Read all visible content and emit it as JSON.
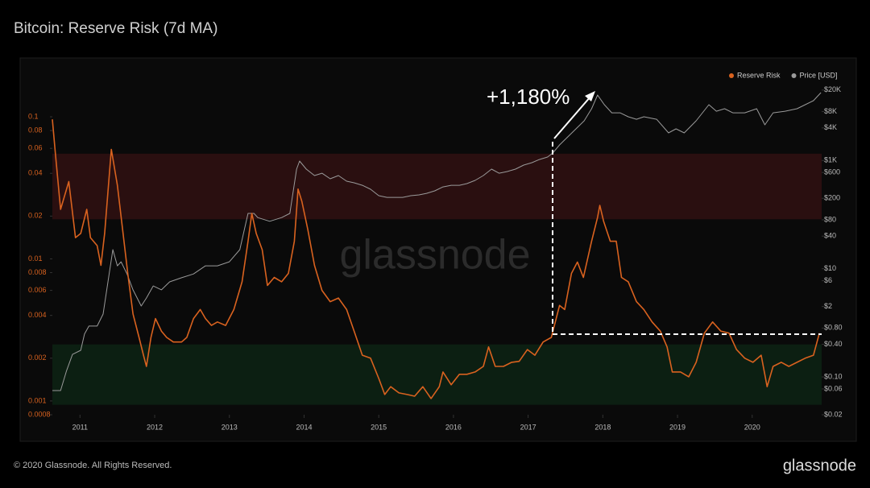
{
  "chart_data": {
    "type": "line",
    "title": "Bitcoin: Reserve Risk (7d MA)",
    "watermark": "glassnode",
    "annotation": "+1,180%",
    "xlim": [
      2010.63,
      2020.93
    ],
    "xticks": [
      2011,
      2012,
      2013,
      2014,
      2015,
      2016,
      2017,
      2018,
      2019,
      2020
    ],
    "ylim": [
      0.0008,
      0.18
    ],
    "ylog": true,
    "yticks": [
      0.1,
      0.08,
      0.06,
      0.04,
      0.02,
      0.01,
      0.008,
      0.006,
      0.004,
      0.002,
      0.001,
      0.0008
    ],
    "y2lim": [
      0.02,
      30000
    ],
    "y2log": true,
    "y2ticks": [
      {
        "value": 20000,
        "label": "$20K"
      },
      {
        "value": 8000,
        "label": "$8K"
      },
      {
        "value": 4000,
        "label": "$4K"
      },
      {
        "value": 1000,
        "label": "$1K"
      },
      {
        "value": 600,
        "label": "$600"
      },
      {
        "value": 200,
        "label": "$200"
      },
      {
        "value": 80,
        "label": "$80"
      },
      {
        "value": 40,
        "label": "$40"
      },
      {
        "value": 10,
        "label": "$10"
      },
      {
        "value": 6,
        "label": "$6"
      },
      {
        "value": 2,
        "label": "$2"
      },
      {
        "value": 0.8,
        "label": "$0.80"
      },
      {
        "value": 0.4,
        "label": "$0.40"
      },
      {
        "value": 0.1,
        "label": "$0.10"
      },
      {
        "value": 0.06,
        "label": "$0.06"
      },
      {
        "value": 0.02,
        "label": "$0.02"
      }
    ],
    "zones": [
      {
        "color": "#2a0f10",
        "range": [
          0.019,
          0.055
        ]
      },
      {
        "color": "#0c1f12",
        "range": [
          0.00094,
          0.0025
        ]
      }
    ],
    "legend": "top-right",
    "series": [
      {
        "name": "Reserve Risk",
        "color": "#d9621f",
        "axis": "y",
        "x": [
          2010.63,
          2010.67,
          2010.74,
          2010.85,
          2010.94,
          2011.01,
          2011.09,
          2011.14,
          2011.23,
          2011.28,
          2011.33,
          2011.42,
          2011.5,
          2011.57,
          2011.64,
          2011.71,
          2011.79,
          2011.85,
          2011.89,
          2011.95,
          2012.01,
          2012.09,
          2012.16,
          2012.25,
          2012.36,
          2012.43,
          2012.52,
          2012.61,
          2012.68,
          2012.76,
          2012.84,
          2012.95,
          2013.06,
          2013.17,
          2013.25,
          2013.3,
          2013.36,
          2013.44,
          2013.51,
          2013.6,
          2013.7,
          2013.79,
          2013.87,
          2013.92,
          2013.97,
          2014.05,
          2014.14,
          2014.24,
          2014.35,
          2014.46,
          2014.57,
          2014.67,
          2014.78,
          2014.89,
          2015.0,
          2015.08,
          2015.16,
          2015.27,
          2015.38,
          2015.48,
          2015.59,
          2015.7,
          2015.81,
          2015.86,
          2015.97,
          2016.08,
          2016.18,
          2016.29,
          2016.4,
          2016.47,
          2016.56,
          2016.67,
          2016.78,
          2016.88,
          2016.99,
          2017.09,
          2017.2,
          2017.31,
          2017.42,
          2017.49,
          2017.58,
          2017.66,
          2017.74,
          2017.85,
          2017.93,
          2017.96,
          2018.01,
          2018.1,
          2018.18,
          2018.25,
          2018.34,
          2018.45,
          2018.55,
          2018.66,
          2018.77,
          2018.86,
          2018.93,
          2019.04,
          2019.15,
          2019.25,
          2019.36,
          2019.47,
          2019.58,
          2019.69,
          2019.79,
          2019.9,
          2020.01,
          2020.12,
          2020.2,
          2020.28,
          2020.39,
          2020.49,
          2020.6,
          2020.71,
          2020.82,
          2020.9
        ],
        "values": [
          0.096,
          0.0556,
          0.0223,
          0.035,
          0.0141,
          0.0151,
          0.0223,
          0.0141,
          0.0124,
          0.009,
          0.0151,
          0.059,
          0.033,
          0.0161,
          0.0079,
          0.0041,
          0.0028,
          0.0021,
          0.00175,
          0.0028,
          0.0038,
          0.0031,
          0.0028,
          0.0026,
          0.0026,
          0.0028,
          0.0038,
          0.0044,
          0.0038,
          0.0034,
          0.0036,
          0.0034,
          0.0044,
          0.0069,
          0.0133,
          0.0209,
          0.0151,
          0.0116,
          0.0065,
          0.0074,
          0.0069,
          0.0079,
          0.0133,
          0.031,
          0.0254,
          0.0161,
          0.009,
          0.006,
          0.005,
          0.0053,
          0.0044,
          0.0031,
          0.0021,
          0.002,
          0.00144,
          0.00111,
          0.00126,
          0.00114,
          0.00111,
          0.00108,
          0.00126,
          0.00104,
          0.00126,
          0.0016,
          0.0013,
          0.00154,
          0.00154,
          0.0016,
          0.00175,
          0.0024,
          0.00175,
          0.00175,
          0.00187,
          0.0019,
          0.0023,
          0.0021,
          0.0026,
          0.0028,
          0.0047,
          0.0044,
          0.0079,
          0.0095,
          0.0074,
          0.0133,
          0.0196,
          0.0238,
          0.0184,
          0.0133,
          0.0133,
          0.0074,
          0.0069,
          0.005,
          0.0044,
          0.0036,
          0.0031,
          0.0024,
          0.0016,
          0.0016,
          0.00148,
          0.00187,
          0.003,
          0.0036,
          0.0031,
          0.003,
          0.0023,
          0.002,
          0.00187,
          0.0021,
          0.00126,
          0.00175,
          0.00187,
          0.00175,
          0.00187,
          0.002,
          0.0021,
          0.003
        ]
      },
      {
        "name": "Price [USD]",
        "color": "#9a9a9a",
        "axis": "y2",
        "x": [
          2010.63,
          2010.74,
          2010.82,
          2010.9,
          2011.01,
          2011.06,
          2011.12,
          2011.23,
          2011.31,
          2011.39,
          2011.44,
          2011.5,
          2011.55,
          2011.63,
          2011.71,
          2011.82,
          2011.89,
          2011.98,
          2012.09,
          2012.2,
          2012.36,
          2012.52,
          2012.68,
          2012.84,
          2013.0,
          2013.14,
          2013.25,
          2013.33,
          2013.38,
          2013.54,
          2013.7,
          2013.81,
          2013.9,
          2013.94,
          2014.03,
          2014.14,
          2014.24,
          2014.35,
          2014.46,
          2014.57,
          2014.67,
          2014.78,
          2014.89,
          2015.0,
          2015.11,
          2015.21,
          2015.32,
          2015.43,
          2015.54,
          2015.64,
          2015.75,
          2015.86,
          2015.97,
          2016.08,
          2016.18,
          2016.29,
          2016.4,
          2016.51,
          2016.61,
          2016.72,
          2016.83,
          2016.94,
          2017.05,
          2017.15,
          2017.26,
          2017.33,
          2017.42,
          2017.53,
          2017.64,
          2017.75,
          2017.85,
          2017.93,
          2018.02,
          2018.12,
          2018.23,
          2018.34,
          2018.45,
          2018.55,
          2018.72,
          2018.88,
          2018.98,
          2019.09,
          2019.25,
          2019.42,
          2019.52,
          2019.63,
          2019.74,
          2019.9,
          2020.06,
          2020.17,
          2020.28,
          2020.44,
          2020.6,
          2020.71,
          2020.82,
          2020.92
        ],
        "values": [
          0.056,
          0.056,
          0.13,
          0.26,
          0.31,
          0.62,
          0.87,
          0.87,
          1.45,
          8.0,
          22.5,
          11.3,
          13.4,
          8.0,
          4.06,
          2.04,
          2.88,
          4.8,
          4.06,
          5.7,
          6.8,
          8.0,
          11.3,
          11.3,
          13.4,
          22.5,
          105,
          105,
          88,
          75,
          88,
          105,
          692,
          974,
          692,
          526,
          582,
          458,
          526,
          414,
          386,
          348,
          294,
          223,
          208,
          208,
          208,
          223,
          231,
          247,
          274,
          325,
          348,
          348,
          373,
          428,
          526,
          692,
          582,
          624,
          692,
          820,
          910,
          1042,
          1156,
          1372,
          1932,
          2722,
          3838,
          5408,
          9038,
          16180,
          10720,
          7600,
          7600,
          6412,
          5780,
          6412,
          5780,
          3230,
          3838,
          3230,
          5408,
          10720,
          8140,
          9038,
          7600,
          7600,
          9038,
          4550,
          7600,
          8140,
          9038,
          10720,
          12720,
          17920
        ]
      }
    ]
  },
  "footer": "© 2020 Glassnode. All Rights Reserved.",
  "logo": "glassnode"
}
